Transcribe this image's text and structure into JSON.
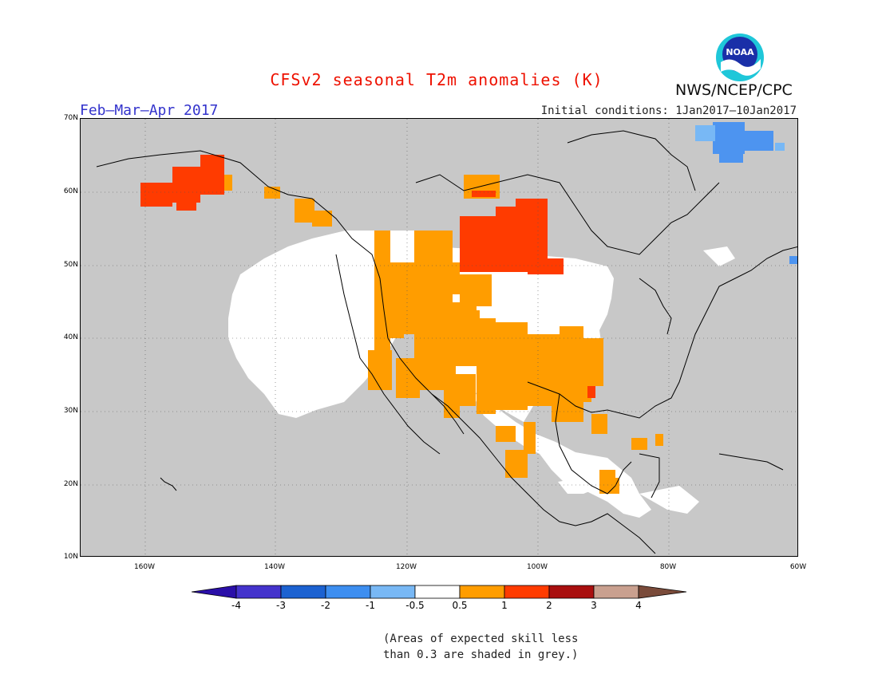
{
  "title": "CFSv2 seasonal T2m anomalies (K)",
  "season": "Feb–Mar–Apr 2017",
  "initial_conditions": "Initial conditions: 1Jan2017–10Jan2017",
  "agency": "NWS/NCEP/CPC",
  "logo_text": "NOAA",
  "lat_labels": [
    "70N",
    "60N",
    "50N",
    "40N",
    "30N",
    "20N",
    "10N"
  ],
  "lon_labels": [
    "160W",
    "140W",
    "120W",
    "100W",
    "80W",
    "60W"
  ],
  "colorbar": {
    "labels": [
      "-4",
      "-3",
      "-2",
      "-1",
      "-0.5",
      "0.5",
      "1",
      "2",
      "3",
      "4"
    ],
    "colors": [
      "#2a0fa8",
      "#4433cc",
      "#1c62d1",
      "#3d8ef0",
      "#78b8f5",
      "#ffffff",
      "#ff9d00",
      "#ff3b00",
      "#a90f0f",
      "#c9a08f",
      "#7a4b3a"
    ]
  },
  "note_lines": [
    "(Areas of expected skill less",
    "than 0.3 are shaded in grey.)"
  ],
  "map_colors": {
    "ocean_grey": "#c8c8c8",
    "land_white": "#ffffff",
    "anom_0_5_1": "#ff9d00",
    "anom_1_2": "#ff3b00",
    "anom_neg": "#4d94f0"
  }
}
